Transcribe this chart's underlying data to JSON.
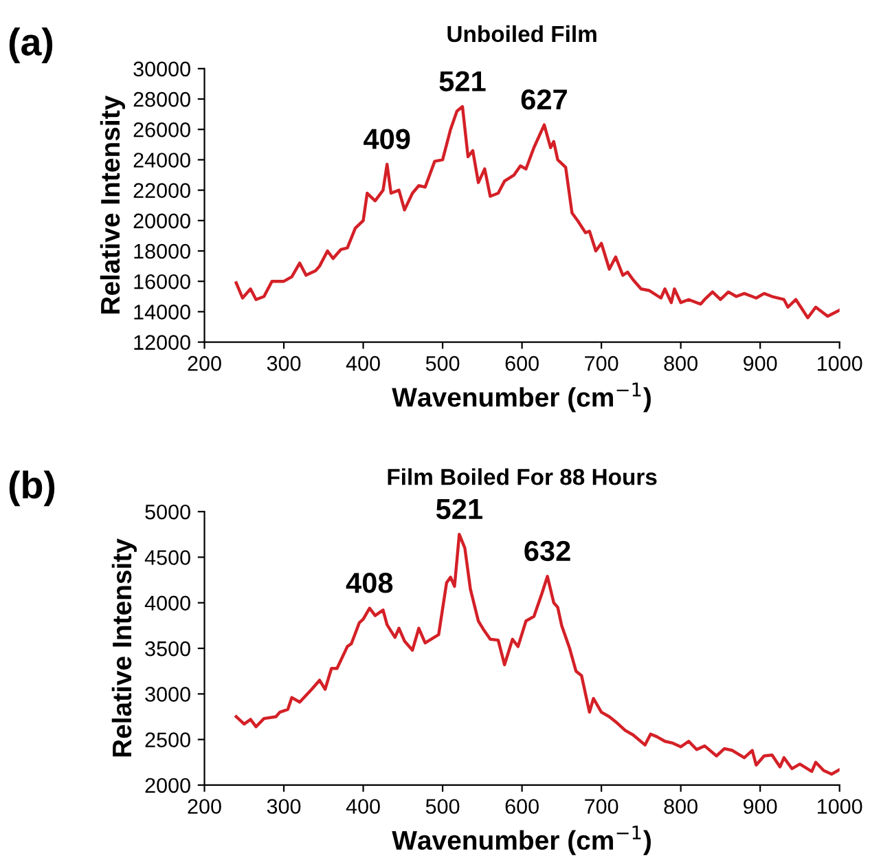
{
  "chart_data": [
    {
      "type": "line",
      "title": "Unboiled Film",
      "xlabel": "Wavenumber (cm$^{−1}$)",
      "ylabel": "Relative Intensity",
      "xlim": [
        200,
        1000
      ],
      "xticks": [
        200,
        300,
        400,
        500,
        600,
        700,
        800,
        900,
        1000
      ],
      "ylim": [
        12000,
        30000
      ],
      "yticks": [
        12000,
        14000,
        16000,
        18000,
        20000,
        22000,
        24000,
        26000,
        28000,
        30000
      ],
      "grid": false,
      "legend": false,
      "annotations": [
        "(a)",
        {
          "text": "409",
          "x": 430,
          "y": 23700
        },
        {
          "text": "521",
          "x": 525,
          "y": 27500
        },
        {
          "text": "627",
          "x": 628,
          "y": 26300
        }
      ],
      "series": [
        {
          "color": "#d42027",
          "x": [
            240,
            248,
            258,
            265,
            275,
            285,
            300,
            310,
            320,
            328,
            340,
            345,
            355,
            362,
            372,
            380,
            390,
            400,
            405,
            415,
            425,
            430,
            435,
            445,
            452,
            462,
            470,
            478,
            490,
            500,
            510,
            518,
            525,
            532,
            538,
            545,
            553,
            560,
            570,
            578,
            590,
            598,
            605,
            615,
            628,
            636,
            640,
            645,
            655,
            663,
            670,
            680,
            685,
            693,
            700,
            710,
            718,
            727,
            733,
            740,
            750,
            760,
            775,
            780,
            788,
            792,
            800,
            810,
            825,
            830,
            840,
            850,
            860,
            870,
            880,
            890,
            895,
            905,
            915,
            930,
            935,
            945,
            960,
            970,
            985,
            1000
          ],
          "values": [
            15900,
            14900,
            15500,
            14800,
            15000,
            16000,
            16000,
            16300,
            17200,
            16400,
            16700,
            17000,
            18000,
            17500,
            18100,
            18200,
            19500,
            20000,
            21800,
            21300,
            22000,
            23700,
            21800,
            22000,
            20700,
            21800,
            22300,
            22200,
            23900,
            24000,
            26000,
            27200,
            27500,
            24200,
            24600,
            22500,
            23400,
            21600,
            21800,
            22600,
            23000,
            23600,
            23400,
            24800,
            26300,
            24800,
            25200,
            24000,
            23500,
            20500,
            20000,
            19200,
            19300,
            18000,
            18500,
            16800,
            17600,
            16400,
            16600,
            16100,
            15500,
            15400,
            14900,
            15500,
            14600,
            15500,
            14600,
            14800,
            14500,
            14800,
            15300,
            14800,
            15300,
            15000,
            15200,
            15000,
            14900,
            15200,
            15000,
            14800,
            14300,
            14800,
            13600,
            14300,
            13700,
            14100
          ]
        }
      ]
    },
    {
      "type": "line",
      "title": "Film Boiled For 88 Hours",
      "xlabel": "Wavenumber (cm$^{−1}$)",
      "ylabel": "Relative Intensity",
      "xlim": [
        200,
        1000
      ],
      "xticks": [
        200,
        300,
        400,
        500,
        600,
        700,
        800,
        900,
        1000
      ],
      "ylim": [
        2000,
        5000
      ],
      "yticks": [
        2000,
        2500,
        3000,
        3500,
        4000,
        4500,
        5000
      ],
      "grid": false,
      "legend": false,
      "annotations": [
        "(b)",
        {
          "text": "408",
          "x": 408,
          "y": 3940
        },
        {
          "text": "521",
          "x": 521,
          "y": 4750
        },
        {
          "text": "632",
          "x": 632,
          "y": 4290
        }
      ],
      "series": [
        {
          "color": "#d42027",
          "x": [
            240,
            250,
            258,
            265,
            275,
            290,
            295,
            305,
            310,
            320,
            335,
            345,
            352,
            360,
            367,
            380,
            385,
            395,
            400,
            408,
            415,
            425,
            430,
            440,
            445,
            452,
            462,
            470,
            478,
            495,
            505,
            510,
            515,
            521,
            528,
            535,
            545,
            552,
            560,
            570,
            578,
            588,
            595,
            605,
            615,
            625,
            632,
            640,
            645,
            650,
            660,
            668,
            675,
            685,
            690,
            700,
            710,
            720,
            730,
            740,
            755,
            762,
            770,
            780,
            790,
            800,
            810,
            820,
            830,
            845,
            855,
            865,
            880,
            890,
            895,
            905,
            915,
            925,
            930,
            940,
            950,
            965,
            970,
            980,
            990,
            1000
          ],
          "values": [
            2750,
            2670,
            2720,
            2640,
            2730,
            2750,
            2800,
            2830,
            2960,
            2910,
            3050,
            3150,
            3050,
            3280,
            3280,
            3520,
            3550,
            3780,
            3820,
            3940,
            3860,
            3920,
            3760,
            3620,
            3720,
            3580,
            3480,
            3720,
            3560,
            3650,
            4220,
            4280,
            4180,
            4750,
            4600,
            4150,
            3800,
            3700,
            3600,
            3590,
            3320,
            3600,
            3520,
            3800,
            3850,
            4100,
            4290,
            4000,
            3950,
            3750,
            3500,
            3250,
            3200,
            2800,
            2950,
            2800,
            2750,
            2680,
            2600,
            2550,
            2440,
            2560,
            2530,
            2480,
            2460,
            2420,
            2480,
            2390,
            2430,
            2320,
            2400,
            2380,
            2300,
            2380,
            2220,
            2320,
            2330,
            2200,
            2300,
            2180,
            2230,
            2150,
            2250,
            2160,
            2120,
            2170
          ]
        }
      ]
    }
  ]
}
